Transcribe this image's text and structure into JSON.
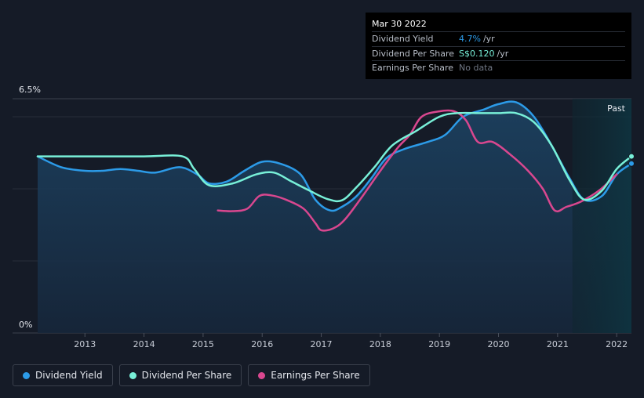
{
  "colors": {
    "dividend_yield": "#2c9be8",
    "dividend_per_share": "#78f0d8",
    "earnings_per_share": "#d9478f",
    "background": "#151b27"
  },
  "tooltip": {
    "date": "Mar 30 2022",
    "rows": [
      {
        "label": "Dividend Yield",
        "value": "4.7%",
        "unit": "/yr"
      },
      {
        "label": "Dividend Per Share",
        "value": "S$0.120",
        "unit": "/yr"
      },
      {
        "label": "Earnings Per Share",
        "value": "No data",
        "unit": ""
      }
    ]
  },
  "legend": [
    {
      "label": "Dividend Yield"
    },
    {
      "label": "Dividend Per Share"
    },
    {
      "label": "Earnings Per Share"
    }
  ],
  "chart_data": {
    "type": "line",
    "title": "",
    "xlabel": "",
    "ylabel": "",
    "y_top_label": "6.5%",
    "y_bottom_label": "0%",
    "ylim": [
      0,
      6.5
    ],
    "xlim": [
      2012.2,
      2022.25
    ],
    "x_ticks": [
      "2013",
      "2014",
      "2015",
      "2016",
      "2017",
      "2018",
      "2019",
      "2020",
      "2021",
      "2022"
    ],
    "x_tick_values": [
      2013,
      2014,
      2015,
      2016,
      2017,
      2018,
      2019,
      2020,
      2021,
      2022
    ],
    "future_region": {
      "label": "Past",
      "from": 2021.25,
      "to": 2022.25
    },
    "series": [
      {
        "name": "Dividend Yield",
        "area": true,
        "x": [
          2012.2,
          2012.6,
          2013.0,
          2013.3,
          2013.6,
          2013.9,
          2014.2,
          2014.6,
          2014.9,
          2015.1,
          2015.4,
          2015.7,
          2016.0,
          2016.3,
          2016.65,
          2016.9,
          2017.15,
          2017.35,
          2017.6,
          2017.85,
          2018.1,
          2018.4,
          2018.8,
          2019.1,
          2019.4,
          2019.75,
          2020.0,
          2020.3,
          2020.6,
          2020.9,
          2021.2,
          2021.45,
          2021.75,
          2022.0,
          2022.25
        ],
        "y": [
          4.9,
          4.6,
          4.5,
          4.5,
          4.55,
          4.5,
          4.45,
          4.6,
          4.4,
          4.15,
          4.2,
          4.5,
          4.75,
          4.7,
          4.4,
          3.7,
          3.4,
          3.5,
          3.8,
          4.3,
          4.85,
          5.1,
          5.3,
          5.5,
          6.0,
          6.2,
          6.35,
          6.4,
          6.0,
          5.2,
          4.3,
          3.7,
          3.8,
          4.4,
          4.7
        ]
      },
      {
        "name": "Dividend Per Share",
        "area": false,
        "x": [
          2012.2,
          2013.0,
          2014.0,
          2014.65,
          2014.85,
          2015.1,
          2015.5,
          2015.9,
          2016.2,
          2016.5,
          2016.8,
          2017.1,
          2017.35,
          2017.6,
          2017.9,
          2018.2,
          2018.6,
          2019.0,
          2019.3,
          2019.7,
          2020.0,
          2020.3,
          2020.6,
          2020.9,
          2021.2,
          2021.45,
          2021.75,
          2022.0,
          2022.25
        ],
        "y": [
          4.9,
          4.9,
          4.9,
          4.9,
          4.55,
          4.1,
          4.15,
          4.4,
          4.45,
          4.2,
          3.95,
          3.72,
          3.68,
          4.05,
          4.6,
          5.2,
          5.6,
          6.0,
          6.1,
          6.1,
          6.1,
          6.1,
          5.85,
          5.2,
          4.25,
          3.7,
          3.95,
          4.55,
          4.9
        ]
      },
      {
        "name": "Earnings Per Share",
        "area": false,
        "x": [
          2015.25,
          2015.5,
          2015.75,
          2015.95,
          2016.15,
          2016.4,
          2016.7,
          2016.9,
          2017.0,
          2017.2,
          2017.4,
          2017.7,
          2018.0,
          2018.3,
          2018.5,
          2018.7,
          2019.0,
          2019.25,
          2019.45,
          2019.65,
          2019.9,
          2020.2,
          2020.5,
          2020.75,
          2020.95,
          2021.15,
          2021.4,
          2021.7,
          2022.0
        ],
        "y": [
          3.4,
          3.38,
          3.45,
          3.8,
          3.82,
          3.7,
          3.45,
          3.05,
          2.85,
          2.9,
          3.15,
          3.8,
          4.5,
          5.15,
          5.5,
          6.0,
          6.15,
          6.15,
          5.9,
          5.3,
          5.3,
          4.95,
          4.5,
          4.0,
          3.4,
          3.5,
          3.65,
          3.95,
          4.4
        ]
      }
    ]
  }
}
